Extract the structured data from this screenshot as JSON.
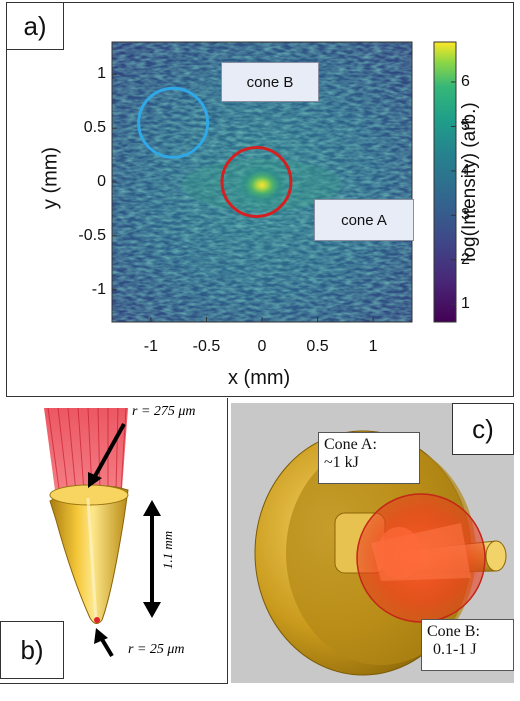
{
  "panel_a": {
    "label": "a)",
    "xlabel": "x (mm)",
    "ylabel": "y (mm)",
    "colorbar_label": "log(Intensity) (arb.)",
    "x_ticks": [
      "-1",
      "-0.5",
      "0",
      "0.5",
      "1"
    ],
    "y_ticks": [
      "1",
      "0.5",
      "0",
      "-0.5",
      "-1"
    ],
    "colorbar_ticks": [
      "6",
      "5",
      "4",
      "3",
      "2",
      "1"
    ],
    "cone_b_tag": "cone B",
    "cone_a_tag": "cone A",
    "colors": {
      "cone_b_circle": "#2fa8e8",
      "cone_a_circle": "#d42020",
      "frame": "#333333"
    }
  },
  "panel_b": {
    "label": "b)",
    "top_radius": "r = 275 μm",
    "length": "1.1 mm",
    "tip_radius": "r = 25 μm"
  },
  "panel_c": {
    "label": "c)",
    "cone_a_title": "Cone A:",
    "cone_a_energy": "~1 kJ",
    "cone_b_title": "Cone B:",
    "cone_b_energy": "0.1-1 J"
  },
  "chart_data": {
    "type": "heatmap",
    "xlabel": "x (mm)",
    "ylabel": "y (mm)",
    "xlim": [
      -1.35,
      1.35
    ],
    "ylim": [
      -1.3,
      1.3
    ],
    "colorbar": {
      "label": "log(Intensity) (arb.)",
      "range": [
        0.6,
        6.9
      ],
      "colormap": "viridis"
    },
    "peak": {
      "x": 0.0,
      "y": 0.0
    },
    "circles": [
      {
        "label": "cone B",
        "center": [
          -0.8,
          0.55
        ],
        "radius": 0.31,
        "color": "#2fa8e8"
      },
      {
        "label": "cone A",
        "center": [
          -0.05,
          0.0
        ],
        "radius": 0.31,
        "color": "#d42020"
      }
    ]
  }
}
